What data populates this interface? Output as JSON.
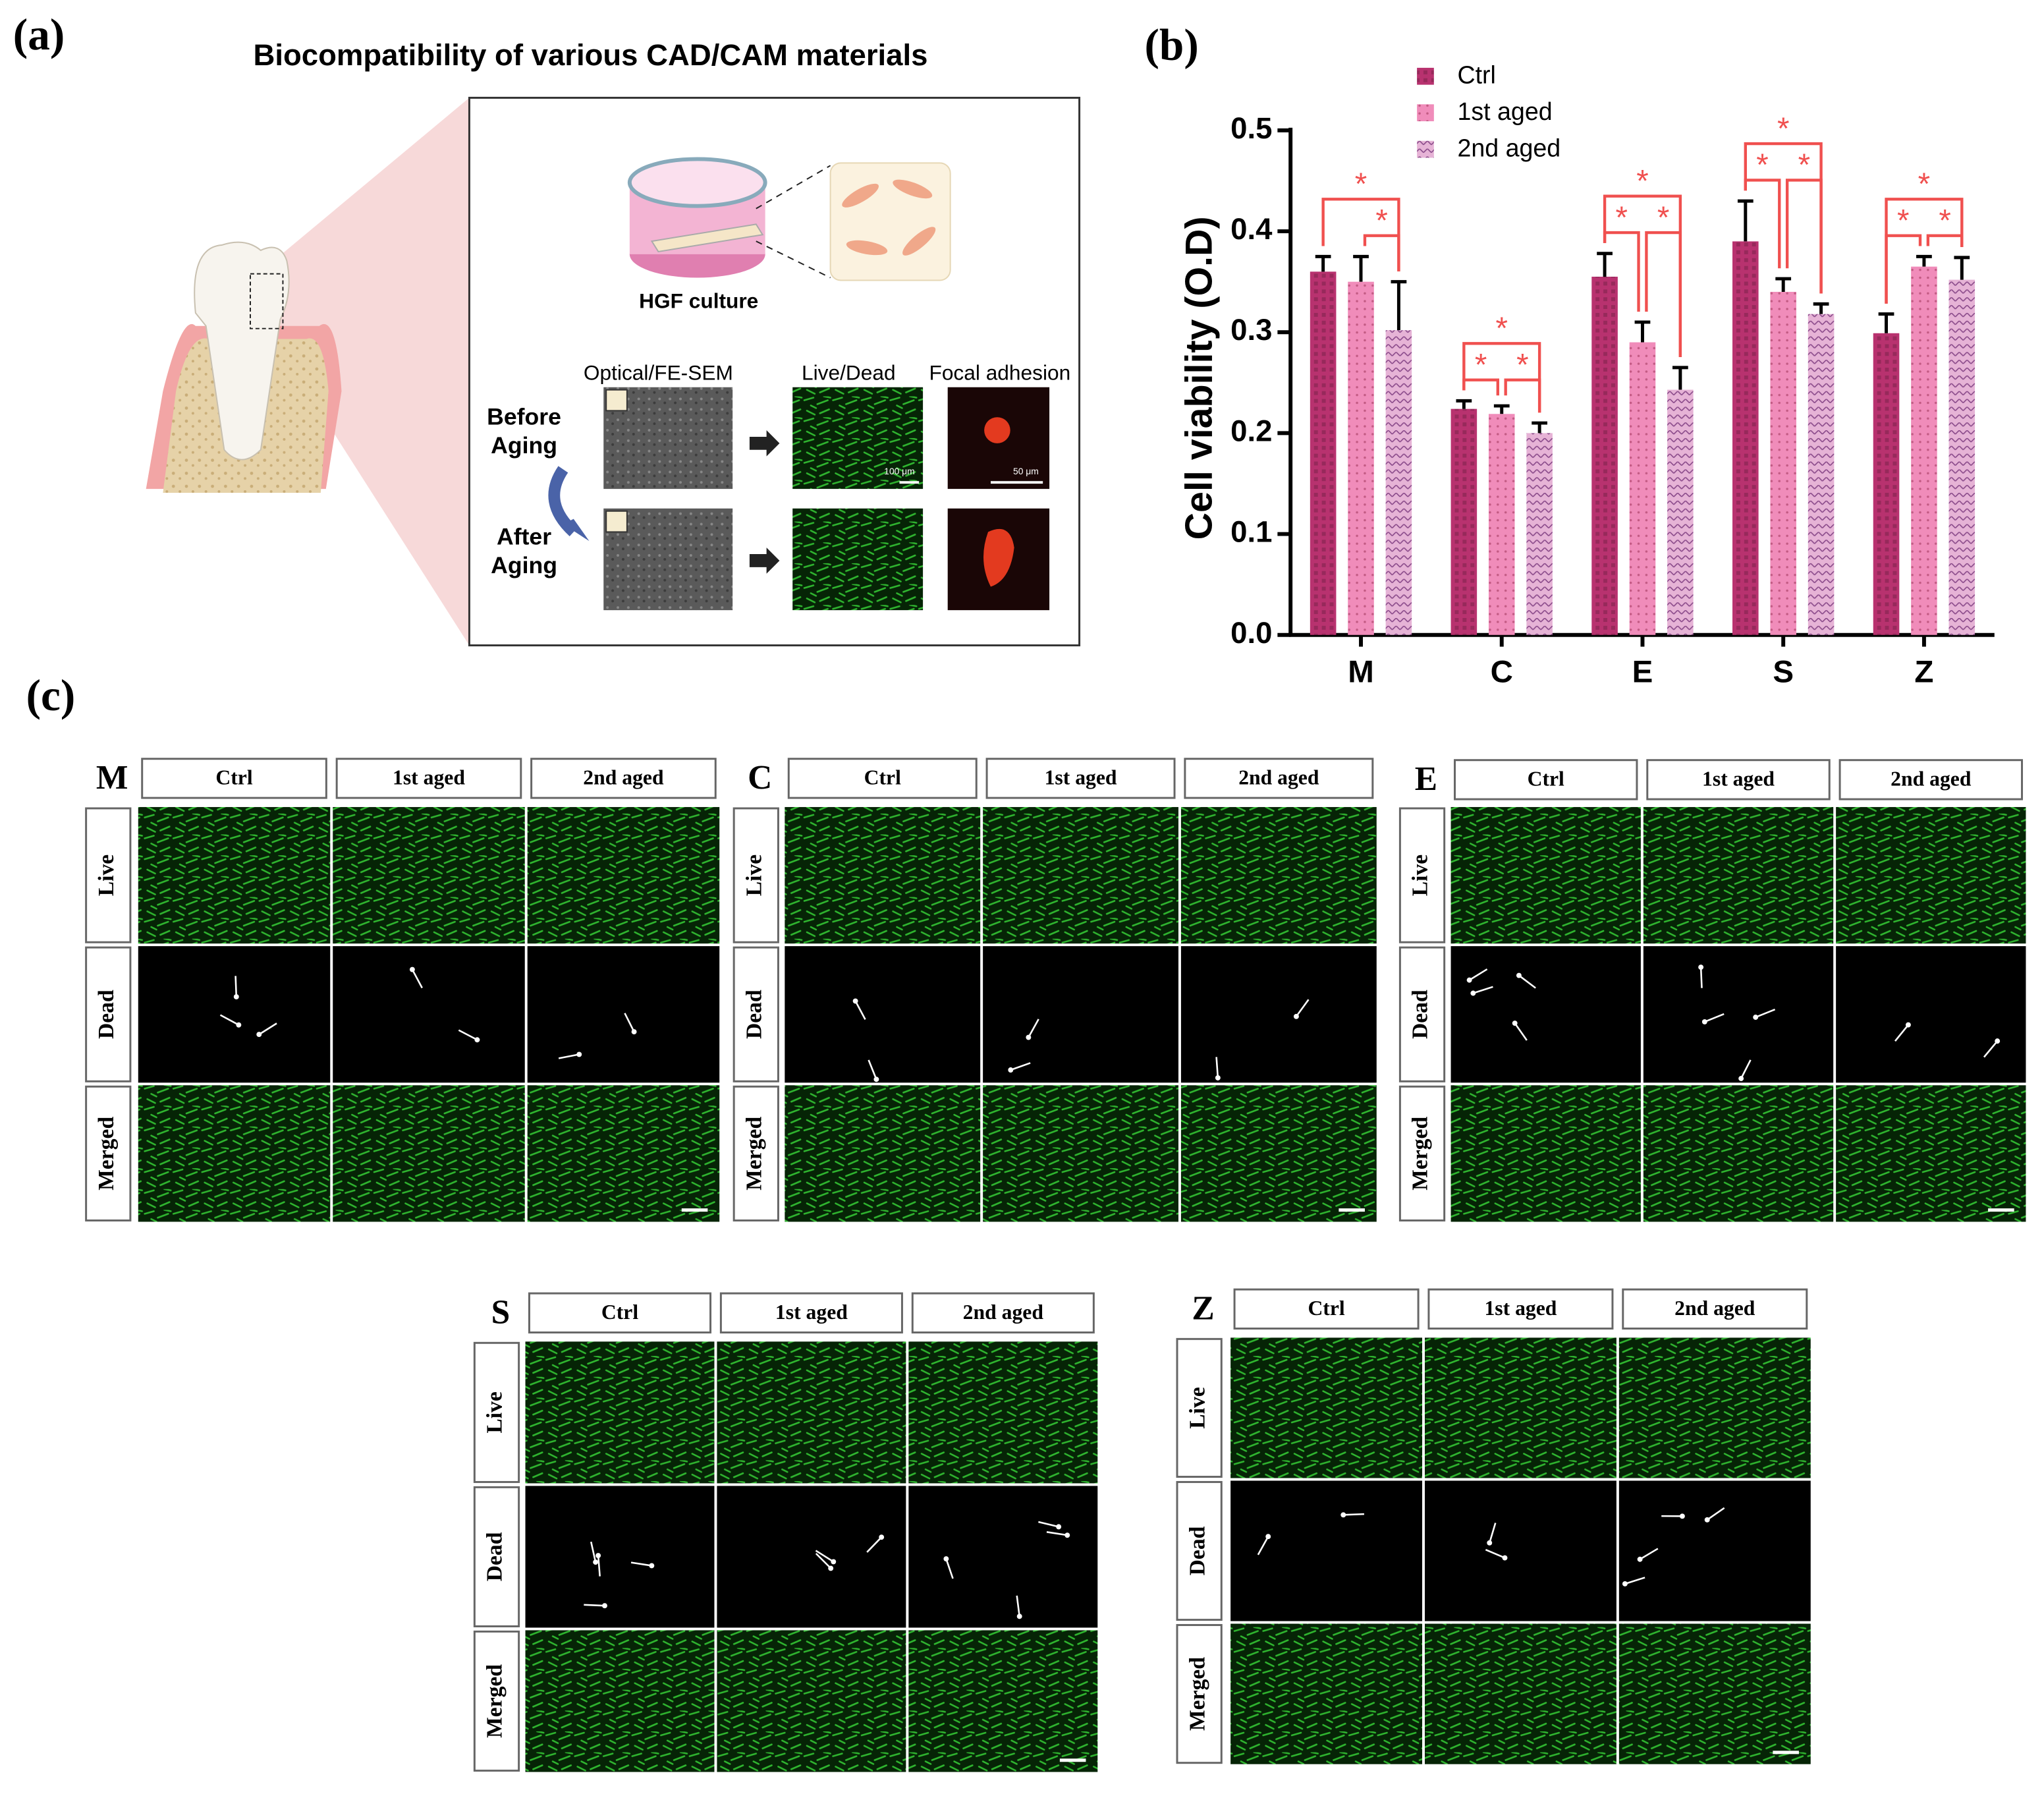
{
  "panel_a": {
    "label": "(a)",
    "title": "Biocompatibility of various CAD/CAM materials",
    "culture": "HGF culture",
    "col_sem": "Optical/FE-SEM",
    "col_livedead": "Live/Dead",
    "col_focal": "Focal adhesion",
    "before": [
      "Before",
      "Aging"
    ],
    "after": [
      "After",
      "Aging"
    ],
    "scale_100": "100 μm",
    "scale_50": "50 μm"
  },
  "chart_data": {
    "type": "bar",
    "label": "(b)",
    "ylabel": "Cell viability (O.D)",
    "categories": [
      "M",
      "C",
      "E",
      "S",
      "Z"
    ],
    "series": [
      {
        "name": "Ctrl",
        "color": "#b8326f",
        "values": [
          0.36,
          0.224,
          0.355,
          0.39,
          0.299
        ],
        "errors": [
          0.015,
          0.008,
          0.023,
          0.04,
          0.019
        ]
      },
      {
        "name": "1st aged",
        "color": "#f08cba",
        "values": [
          0.35,
          0.219,
          0.29,
          0.34,
          0.365
        ],
        "errors": [
          0.025,
          0.008,
          0.02,
          0.013,
          0.01
        ]
      },
      {
        "name": "2nd aged",
        "color": "#e6b3d6",
        "values": [
          0.302,
          0.2,
          0.243,
          0.318,
          0.352
        ],
        "errors": [
          0.048,
          0.01,
          0.022,
          0.01,
          0.022
        ]
      }
    ],
    "ylim": [
      0,
      0.5
    ],
    "yticks": [
      {
        "value": 0,
        "label": "0.0"
      },
      {
        "value": 0.1,
        "label": "0.1"
      },
      {
        "value": 0.2,
        "label": "0.2"
      },
      {
        "value": 0.3,
        "label": "0.3"
      },
      {
        "value": 0.4,
        "label": "0.4"
      },
      {
        "value": 0.5,
        "label": "0.5"
      }
    ],
    "legend": "top-left",
    "significance": [
      {
        "category": "M",
        "between": [
          "Ctrl",
          "2nd aged"
        ],
        "label": "*"
      },
      {
        "category": "M",
        "between": [
          "1st aged",
          "2nd aged"
        ],
        "label": "*"
      },
      {
        "category": "C",
        "between": [
          "Ctrl",
          "2nd aged"
        ],
        "label": "*"
      },
      {
        "category": "C",
        "between": [
          "Ctrl",
          "1st aged"
        ],
        "label": "*"
      },
      {
        "category": "C",
        "between": [
          "1st aged",
          "2nd aged"
        ],
        "label": "*"
      },
      {
        "category": "E",
        "between": [
          "Ctrl",
          "2nd aged"
        ],
        "label": "*"
      },
      {
        "category": "E",
        "between": [
          "Ctrl",
          "1st aged"
        ],
        "label": "*"
      },
      {
        "category": "E",
        "between": [
          "1st aged",
          "2nd aged"
        ],
        "label": "*"
      },
      {
        "category": "S",
        "between": [
          "Ctrl",
          "2nd aged"
        ],
        "label": "*"
      },
      {
        "category": "S",
        "between": [
          "Ctrl",
          "1st aged"
        ],
        "label": "*"
      },
      {
        "category": "S",
        "between": [
          "1st aged",
          "2nd aged"
        ],
        "label": "*"
      },
      {
        "category": "Z",
        "between": [
          "Ctrl",
          "2nd aged"
        ],
        "label": "*"
      },
      {
        "category": "Z",
        "between": [
          "Ctrl",
          "1st aged"
        ],
        "label": "*"
      },
      {
        "category": "Z",
        "between": [
          "1st aged",
          "2nd aged"
        ],
        "label": "*"
      }
    ],
    "significance_color": "#f0504f"
  },
  "panel_c": {
    "label": "(c)",
    "columns": [
      "Ctrl",
      "1st aged",
      "2nd aged"
    ],
    "rows": [
      "Live",
      "Dead",
      "Merged"
    ],
    "groups": [
      "M",
      "C",
      "E",
      "S",
      "Z"
    ]
  }
}
